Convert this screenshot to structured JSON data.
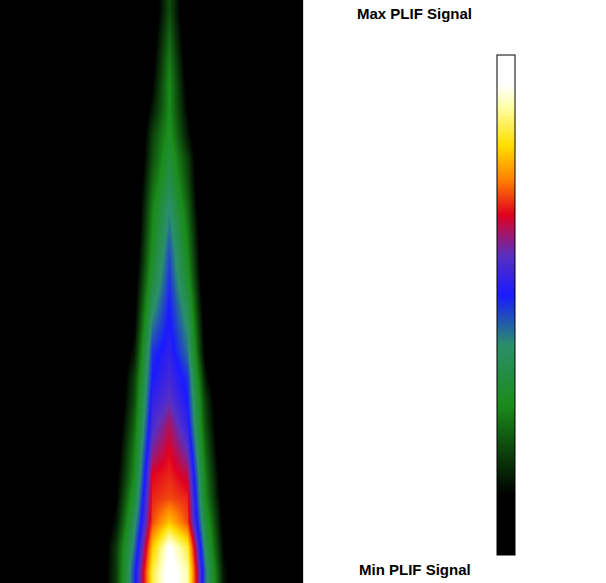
{
  "chart_data": {
    "type": "heatmap",
    "x": [
      0,
      1,
      2,
      3,
      4,
      5,
      6,
      7,
      8,
      9,
      10,
      11,
      12,
      13,
      14,
      15,
      16
    ],
    "y": [
      0,
      1,
      2,
      3,
      4,
      5,
      6,
      7,
      8,
      9,
      10,
      11,
      12,
      13,
      14,
      15,
      16,
      17,
      18,
      19,
      20,
      21,
      22,
      23
    ],
    "z": [
      [
        0,
        0,
        0,
        0,
        0,
        0.05,
        0.2,
        0.5,
        0.85,
        0.97,
        0.9,
        0.45,
        0.15,
        0.03,
        0,
        0,
        0
      ],
      [
        0,
        0,
        0,
        0,
        0,
        0.03,
        0.2,
        0.45,
        0.8,
        0.95,
        0.85,
        0.4,
        0.12,
        0.02,
        0,
        0,
        0
      ],
      [
        0,
        0,
        0,
        0,
        0,
        0.02,
        0.15,
        0.4,
        0.72,
        0.8,
        0.72,
        0.35,
        0.1,
        0,
        0,
        0,
        0
      ],
      [
        0,
        0,
        0,
        0,
        0,
        0,
        0.12,
        0.35,
        0.7,
        0.72,
        0.7,
        0.3,
        0.08,
        0,
        0,
        0,
        0
      ],
      [
        0,
        0,
        0,
        0,
        0,
        0,
        0.1,
        0.3,
        0.68,
        0.7,
        0.66,
        0.28,
        0.06,
        0,
        0,
        0,
        0
      ],
      [
        0,
        0,
        0,
        0,
        0,
        0,
        0.08,
        0.28,
        0.62,
        0.68,
        0.6,
        0.25,
        0.04,
        0,
        0,
        0,
        0
      ],
      [
        0,
        0,
        0,
        0,
        0,
        0,
        0.06,
        0.25,
        0.58,
        0.65,
        0.55,
        0.22,
        0.03,
        0,
        0,
        0,
        0
      ],
      [
        0,
        0,
        0,
        0,
        0,
        0,
        0.04,
        0.22,
        0.55,
        0.6,
        0.52,
        0.2,
        0.02,
        0,
        0,
        0,
        0
      ],
      [
        0,
        0,
        0,
        0,
        0,
        0,
        0.03,
        0.2,
        0.52,
        0.57,
        0.5,
        0.15,
        0,
        0,
        0,
        0,
        0
      ],
      [
        0,
        0,
        0,
        0,
        0,
        0,
        0.02,
        0.15,
        0.5,
        0.55,
        0.45,
        0.1,
        0,
        0,
        0,
        0,
        0
      ],
      [
        0,
        0,
        0,
        0,
        0,
        0,
        0,
        0.12,
        0.45,
        0.53,
        0.42,
        0.08,
        0,
        0,
        0,
        0,
        0
      ],
      [
        0,
        0,
        0,
        0,
        0,
        0,
        0,
        0.1,
        0.4,
        0.52,
        0.38,
        0.06,
        0,
        0,
        0,
        0,
        0
      ],
      [
        0,
        0,
        0,
        0,
        0,
        0,
        0,
        0.08,
        0.35,
        0.5,
        0.33,
        0.04,
        0,
        0,
        0,
        0,
        0
      ],
      [
        0,
        0,
        0,
        0,
        0,
        0,
        0,
        0.06,
        0.32,
        0.48,
        0.3,
        0.03,
        0,
        0,
        0,
        0,
        0
      ],
      [
        0,
        0,
        0,
        0,
        0,
        0,
        0,
        0.04,
        0.3,
        0.45,
        0.28,
        0.02,
        0,
        0,
        0,
        0,
        0
      ],
      [
        0,
        0,
        0,
        0,
        0,
        0,
        0,
        0.03,
        0.28,
        0.42,
        0.25,
        0,
        0,
        0,
        0,
        0,
        0
      ],
      [
        0,
        0,
        0,
        0,
        0,
        0,
        0,
        0.02,
        0.25,
        0.38,
        0.22,
        0,
        0,
        0,
        0,
        0,
        0
      ],
      [
        0,
        0,
        0,
        0,
        0,
        0,
        0,
        0,
        0.22,
        0.35,
        0.2,
        0,
        0,
        0,
        0,
        0,
        0
      ],
      [
        0,
        0,
        0,
        0,
        0,
        0,
        0,
        0,
        0.2,
        0.32,
        0.15,
        0,
        0,
        0,
        0,
        0,
        0
      ],
      [
        0,
        0,
        0,
        0,
        0,
        0,
        0,
        0,
        0.15,
        0.3,
        0.12,
        0,
        0,
        0,
        0,
        0,
        0
      ],
      [
        0,
        0,
        0,
        0,
        0,
        0,
        0,
        0,
        0.12,
        0.3,
        0.1,
        0,
        0,
        0,
        0,
        0,
        0
      ],
      [
        0,
        0,
        0,
        0,
        0,
        0,
        0,
        0,
        0.1,
        0.28,
        0.08,
        0,
        0,
        0,
        0,
        0,
        0
      ],
      [
        0,
        0,
        0,
        0,
        0,
        0,
        0,
        0,
        0.08,
        0.25,
        0.06,
        0,
        0,
        0,
        0,
        0,
        0
      ],
      [
        0,
        0,
        0,
        0,
        0,
        0,
        0,
        0,
        0.06,
        0.22,
        0.05,
        0,
        0,
        0,
        0,
        0,
        0
      ]
    ],
    "xlim": [
      -0.5,
      16.5
    ],
    "ylim": [
      -0.5,
      23.5
    ],
    "tick_labels": false,
    "colorbar": {
      "range": [
        0,
        1
      ],
      "ticks": [
        {
          "value": 1,
          "label": "Max PLIF Signal"
        },
        {
          "value": 0,
          "label": "Min PLIF Signal"
        }
      ]
    }
  }
}
